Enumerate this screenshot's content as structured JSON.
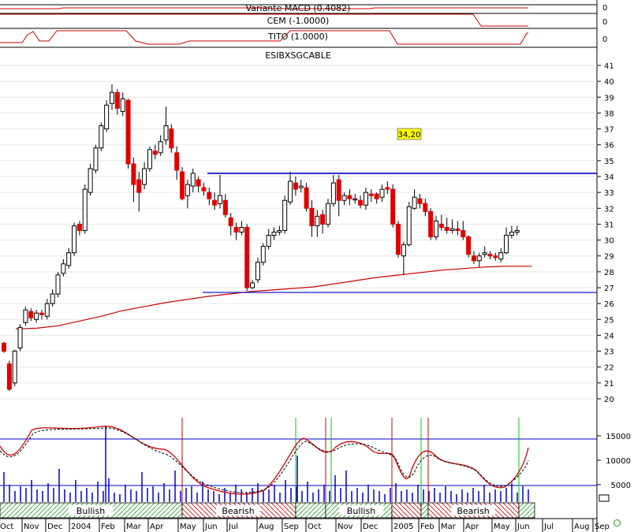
{
  "chart_data": {
    "type": "candlestick",
    "symbol_label": "ESIBXSGCABLE",
    "indicators": [
      {
        "name": "Variante MACD (0.4082)",
        "value_label": "0"
      },
      {
        "name": "CEM (-1.0000)",
        "value_label": "0"
      },
      {
        "name": "TITO (1.0000)",
        "value_label": "0"
      }
    ],
    "price_axis": {
      "min": 20,
      "max": 41,
      "ticks": [
        20,
        21,
        22,
        23,
        24,
        25,
        26,
        27,
        28,
        29,
        30,
        31,
        32,
        33,
        34,
        35,
        36,
        37,
        38,
        39,
        40,
        41
      ]
    },
    "volume_axis": {
      "ticks": [
        5000,
        10000,
        15000
      ],
      "labels": [
        "5000",
        "10000",
        "15000"
      ]
    },
    "x_labels": [
      "Oct",
      "Nov",
      "Dec",
      "2004",
      "Feb",
      "Mar",
      "Apr",
      "May",
      "Jun",
      "Jul",
      "Aug",
      "Sep",
      "Oct",
      "Nov",
      "Dec",
      "2005",
      "Feb",
      "Mar",
      "Apr",
      "May",
      "Jun",
      "Jul",
      "Aug",
      "Sep"
    ],
    "resistance_level": 34.2,
    "resistance_label": "34,20",
    "support_level": 26.7,
    "candles": [
      [
        23.5,
        23.0,
        23.6,
        22.9
      ],
      [
        22.2,
        20.6,
        22.4,
        20.5
      ],
      [
        21.0,
        23.0,
        23.1,
        20.8
      ],
      [
        23.2,
        24.5,
        24.7,
        23.0
      ],
      [
        24.8,
        25.6,
        25.8,
        24.6
      ],
      [
        25.5,
        25.1,
        25.7,
        24.9
      ],
      [
        25.0,
        25.4,
        25.6,
        24.8
      ],
      [
        25.4,
        25.3,
        25.6,
        25.0
      ],
      [
        25.2,
        26.0,
        26.3,
        25.0
      ],
      [
        26.0,
        26.6,
        26.9,
        25.8
      ],
      [
        26.6,
        27.8,
        28.0,
        26.4
      ],
      [
        27.9,
        28.5,
        28.8,
        27.7
      ],
      [
        28.4,
        29.2,
        29.5,
        28.2
      ],
      [
        29.2,
        30.9,
        31.1,
        29.0
      ],
      [
        31.0,
        30.6,
        31.2,
        30.3
      ],
      [
        30.6,
        33.2,
        33.5,
        30.4
      ],
      [
        33.0,
        34.5,
        34.8,
        32.8
      ],
      [
        34.4,
        35.8,
        36.0,
        34.2
      ],
      [
        35.8,
        37.2,
        37.4,
        35.6
      ],
      [
        37.0,
        38.5,
        38.8,
        36.8
      ],
      [
        38.6,
        39.3,
        39.8,
        38.2
      ],
      [
        39.3,
        38.3,
        39.5,
        37.9
      ],
      [
        38.1,
        38.9,
        39.3,
        37.8
      ],
      [
        38.8,
        34.8,
        38.9,
        34.5
      ],
      [
        34.8,
        33.5,
        35.2,
        32.4
      ],
      [
        33.8,
        33.0,
        34.3,
        31.8
      ],
      [
        33.5,
        34.5,
        34.9,
        33.2
      ],
      [
        34.5,
        35.7,
        35.9,
        34.3
      ],
      [
        35.6,
        35.4,
        36.0,
        35.1
      ],
      [
        35.5,
        36.2,
        36.6,
        35.3
      ],
      [
        36.3,
        37.2,
        38.4,
        36.0
      ],
      [
        37.0,
        35.8,
        37.3,
        35.5
      ],
      [
        35.5,
        34.4,
        35.9,
        33.8
      ],
      [
        34.3,
        32.6,
        34.6,
        32.5
      ],
      [
        32.8,
        33.5,
        33.8,
        32.0
      ],
      [
        33.4,
        34.2,
        34.5,
        33.0
      ],
      [
        33.8,
        33.4,
        34.0,
        33.0
      ],
      [
        33.3,
        33.1,
        33.6,
        32.8
      ],
      [
        33.0,
        32.6,
        33.3,
        32.2
      ],
      [
        32.5,
        32.2,
        33.0,
        31.9
      ],
      [
        32.3,
        32.8,
        34.1,
        32.0
      ],
      [
        32.5,
        31.6,
        32.9,
        31.4
      ],
      [
        31.4,
        30.9,
        31.7,
        30.3
      ],
      [
        30.8,
        30.5,
        31.1,
        30.0
      ],
      [
        30.5,
        30.8,
        31.2,
        30.3
      ],
      [
        30.8,
        27.0,
        31.0,
        26.8
      ],
      [
        27.0,
        27.3,
        27.5,
        26.9
      ],
      [
        27.5,
        28.6,
        28.9,
        27.3
      ],
      [
        28.6,
        29.6,
        29.8,
        28.4
      ],
      [
        29.6,
        30.3,
        30.7,
        29.4
      ],
      [
        30.3,
        30.5,
        30.8,
        30.0
      ],
      [
        30.5,
        30.6,
        30.9,
        30.3
      ],
      [
        30.6,
        32.5,
        32.8,
        30.4
      ],
      [
        32.4,
        33.7,
        34.3,
        32.2
      ],
      [
        33.6,
        33.2,
        34.0,
        32.8
      ],
      [
        33.3,
        33.4,
        33.8,
        33.0
      ],
      [
        33.3,
        32.0,
        33.6,
        31.8
      ],
      [
        32.0,
        30.9,
        32.5,
        30.2
      ],
      [
        30.9,
        31.5,
        31.9,
        30.2
      ],
      [
        31.6,
        31.0,
        31.9,
        30.4
      ],
      [
        31.0,
        32.3,
        32.6,
        30.8
      ],
      [
        32.3,
        33.6,
        34.1,
        32.1
      ],
      [
        33.8,
        32.5,
        34.1,
        31.5
      ],
      [
        32.5,
        32.8,
        33.0,
        32.2
      ],
      [
        32.8,
        32.6,
        33.2,
        32.2
      ],
      [
        32.6,
        32.6,
        32.9,
        32.3
      ],
      [
        32.5,
        32.2,
        32.8,
        32.0
      ],
      [
        32.2,
        33.0,
        33.3,
        31.9
      ],
      [
        32.9,
        32.8,
        33.2,
        32.4
      ],
      [
        32.9,
        32.6,
        33.0,
        32.3
      ],
      [
        32.7,
        33.2,
        33.5,
        32.4
      ],
      [
        33.3,
        33.2,
        33.7,
        32.9
      ],
      [
        33.2,
        31.0,
        33.5,
        30.8
      ],
      [
        31.0,
        29.1,
        31.2,
        28.9
      ],
      [
        29.0,
        29.7,
        29.9,
        27.8
      ],
      [
        29.7,
        32.1,
        32.4,
        29.6
      ],
      [
        32.0,
        32.7,
        33.2,
        31.9
      ],
      [
        32.6,
        32.3,
        32.9,
        32.0
      ],
      [
        32.3,
        31.8,
        32.6,
        31.5
      ],
      [
        31.8,
        30.2,
        32.0,
        30.0
      ],
      [
        30.2,
        31.2,
        31.5,
        30.0
      ],
      [
        31.0,
        30.8,
        31.6,
        30.6
      ],
      [
        30.8,
        30.6,
        31.4,
        30.4
      ],
      [
        30.6,
        30.7,
        31.3,
        30.4
      ],
      [
        30.7,
        30.6,
        31.2,
        30.3
      ],
      [
        30.6,
        30.2,
        31.2,
        30.0
      ],
      [
        30.2,
        29.1,
        30.3,
        28.9
      ],
      [
        29.0,
        28.7,
        29.3,
        28.5
      ],
      [
        28.7,
        29.0,
        29.2,
        28.3
      ],
      [
        29.1,
        29.2,
        29.6,
        28.9
      ],
      [
        29.1,
        29.0,
        29.3,
        28.8
      ],
      [
        29.0,
        28.9,
        29.2,
        28.7
      ],
      [
        28.8,
        29.2,
        29.5,
        28.6
      ],
      [
        29.2,
        30.3,
        30.8,
        29.1
      ],
      [
        30.3,
        30.5,
        30.9,
        30.1
      ],
      [
        30.5,
        30.6,
        30.9,
        30.3
      ]
    ],
    "ma_curve": [
      [
        0,
        24.4
      ],
      [
        2,
        24.45
      ],
      [
        4,
        24.6
      ],
      [
        6,
        24.9
      ],
      [
        8,
        25.2
      ],
      [
        10,
        25.55
      ],
      [
        12,
        25.8
      ],
      [
        14,
        26.05
      ],
      [
        16,
        26.25
      ],
      [
        18,
        26.45
      ],
      [
        20,
        26.6
      ],
      [
        22,
        26.75
      ],
      [
        24,
        26.85
      ],
      [
        26,
        26.95
      ],
      [
        28,
        27.05
      ],
      [
        30,
        27.25
      ],
      [
        32,
        27.45
      ],
      [
        34,
        27.65
      ],
      [
        36,
        27.8
      ],
      [
        38,
        27.95
      ],
      [
        40,
        28.1
      ],
      [
        42,
        28.2
      ],
      [
        44,
        28.3
      ],
      [
        46,
        28.35
      ],
      [
        48,
        28.35
      ],
      [
        48.5,
        28.35
      ]
    ]
  },
  "bands": [
    {
      "label": "Bullish"
    },
    {
      "label": "Bearish"
    },
    {
      "label": ""
    },
    {
      "label": "Bullish"
    },
    {
      "label": ""
    },
    {
      "label": "Bearish"
    }
  ]
}
